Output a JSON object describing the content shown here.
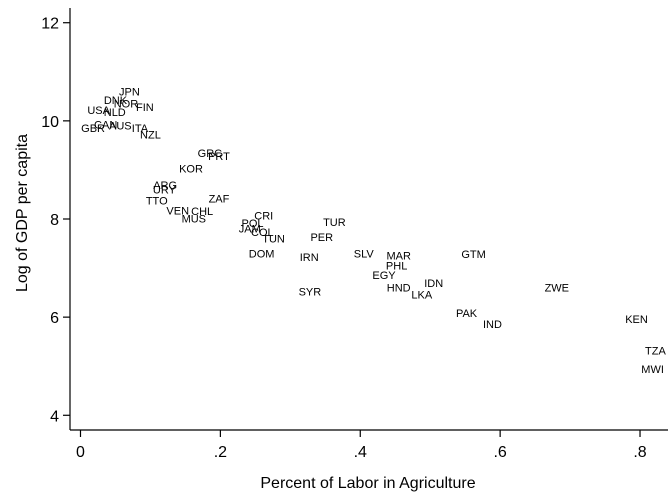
{
  "chart_data": {
    "type": "scatter",
    "title": "",
    "xlabel": "Percent of Labor in Agriculture",
    "ylabel": "Log of GDP per capita",
    "xlim": [
      -0.015,
      0.84
    ],
    "ylim": [
      3.7,
      12.3
    ],
    "xticks": [
      {
        "value": 0,
        "label": "0"
      },
      {
        "value": 0.2,
        "label": ".2"
      },
      {
        "value": 0.4,
        "label": ".4"
      },
      {
        "value": 0.6,
        "label": ".6"
      },
      {
        "value": 0.8,
        "label": ".8"
      }
    ],
    "yticks": [
      {
        "value": 4,
        "label": "4"
      },
      {
        "value": 6,
        "label": "6"
      },
      {
        "value": 8,
        "label": "8"
      },
      {
        "value": 10,
        "label": "10"
      },
      {
        "value": 12,
        "label": "12"
      }
    ],
    "grid": false,
    "marker": "country code labels",
    "points": [
      {
        "label": "JPN",
        "x": 0.07,
        "y": 10.6
      },
      {
        "label": "DNK",
        "x": 0.05,
        "y": 10.43
      },
      {
        "label": "NOR",
        "x": 0.065,
        "y": 10.35
      },
      {
        "label": "FIN",
        "x": 0.092,
        "y": 10.28
      },
      {
        "label": "USA",
        "x": 0.026,
        "y": 10.22
      },
      {
        "label": "NLD",
        "x": 0.049,
        "y": 10.18
      },
      {
        "label": "CAN",
        "x": 0.036,
        "y": 9.93
      },
      {
        "label": "AUS",
        "x": 0.057,
        "y": 9.91
      },
      {
        "label": "GBR",
        "x": 0.018,
        "y": 9.85
      },
      {
        "label": "ITA",
        "x": 0.085,
        "y": 9.85
      },
      {
        "label": "NZL",
        "x": 0.1,
        "y": 9.72
      },
      {
        "label": "GRC",
        "x": 0.185,
        "y": 9.35
      },
      {
        "label": "PRT",
        "x": 0.198,
        "y": 9.28
      },
      {
        "label": "KOR",
        "x": 0.158,
        "y": 9.03
      },
      {
        "label": "ARG",
        "x": 0.121,
        "y": 8.69
      },
      {
        "label": "URY",
        "x": 0.12,
        "y": 8.6
      },
      {
        "label": "ZAF",
        "x": 0.198,
        "y": 8.42
      },
      {
        "label": "TTO",
        "x": 0.109,
        "y": 8.38
      },
      {
        "label": "VEN",
        "x": 0.139,
        "y": 8.17
      },
      {
        "label": "CHL",
        "x": 0.174,
        "y": 8.16
      },
      {
        "label": "MUS",
        "x": 0.162,
        "y": 8.01
      },
      {
        "label": "CRI",
        "x": 0.262,
        "y": 8.07
      },
      {
        "label": "POL",
        "x": 0.246,
        "y": 7.92
      },
      {
        "label": "JAM",
        "x": 0.242,
        "y": 7.81
      },
      {
        "label": "COL",
        "x": 0.26,
        "y": 7.74
      },
      {
        "label": "TUN",
        "x": 0.276,
        "y": 7.6
      },
      {
        "label": "TUR",
        "x": 0.363,
        "y": 7.94
      },
      {
        "label": "PER",
        "x": 0.345,
        "y": 7.63
      },
      {
        "label": "DOM",
        "x": 0.259,
        "y": 7.3
      },
      {
        "label": "IRN",
        "x": 0.327,
        "y": 7.23
      },
      {
        "label": "SLV",
        "x": 0.405,
        "y": 7.3
      },
      {
        "label": "MAR",
        "x": 0.455,
        "y": 7.26
      },
      {
        "label": "PHL",
        "x": 0.452,
        "y": 7.05
      },
      {
        "label": "EGY",
        "x": 0.434,
        "y": 6.86
      },
      {
        "label": "IDN",
        "x": 0.505,
        "y": 6.7
      },
      {
        "label": "HND",
        "x": 0.455,
        "y": 6.6
      },
      {
        "label": "LKA",
        "x": 0.488,
        "y": 6.46
      },
      {
        "label": "GTM",
        "x": 0.562,
        "y": 7.29
      },
      {
        "label": "SYR",
        "x": 0.328,
        "y": 6.52
      },
      {
        "label": "ZWE",
        "x": 0.681,
        "y": 6.6
      },
      {
        "label": "PAK",
        "x": 0.552,
        "y": 6.08
      },
      {
        "label": "IND",
        "x": 0.589,
        "y": 5.86
      },
      {
        "label": "KEN",
        "x": 0.795,
        "y": 5.96
      },
      {
        "label": "TZA",
        "x": 0.822,
        "y": 5.32
      },
      {
        "label": "MWI",
        "x": 0.818,
        "y": 4.94
      }
    ]
  }
}
